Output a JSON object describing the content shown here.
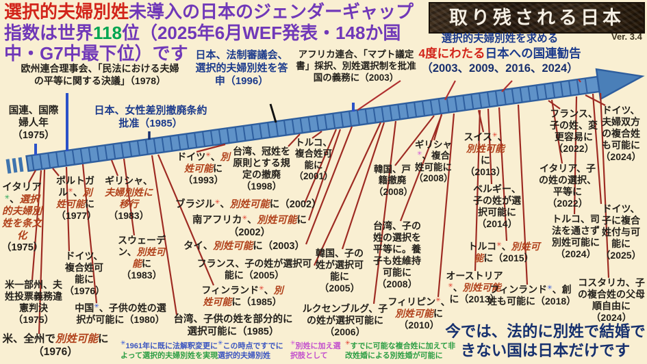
{
  "header": {
    "segments": [
      {
        "text": "選択的夫婦別姓",
        "color": "red"
      },
      {
        "text": "未導入の日本のジェンダーギャップ指数は世界",
        "color": "purple"
      },
      {
        "text": "118",
        "color": "green"
      },
      {
        "text": "位（2025年6月WEF発表・148か国中・G7中最下位）です",
        "color": "purple"
      }
    ]
  },
  "banner": {
    "title": "取り残される日本",
    "version": "Ver. 3.4"
  },
  "un_recommendation": {
    "line1": "選択的夫婦別姓を求める",
    "line2_red": "4度にわたる",
    "line2_navy": "日本への国連勧告",
    "line3": "（2003、2009、2016、2024）"
  },
  "milestones": [
    {
      "id": "eu-1978",
      "text": "欧州連合理事会、「民法における夫婦の平等に関する決議」（1978）"
    },
    {
      "id": "un-1975",
      "text": "国連、国際婦人年（1975）"
    },
    {
      "id": "cedaw-1985",
      "text": "日本、女性差別撤廃条約批准（1985）"
    },
    {
      "id": "shingikai-1996",
      "text": "日本、法制審議会、選択的夫婦別姓を答申（1996）"
    },
    {
      "id": "africa-2003",
      "text": "アフリカ連合、「マプト議定書」採択、別姓選択制を批准国の義務に（2003）"
    }
  ],
  "entries": [
    {
      "id": "italy-1975",
      "segments": [
        {
          "t": "イタリア",
          "s": "b"
        },
        {
          "t": "✳",
          "s": "ag"
        },
        {
          "t": "、",
          "s": "b"
        },
        {
          "t": "選択的夫婦別姓を条文化",
          "s": "r"
        },
        {
          "t": "（1975）",
          "s": "b"
        }
      ]
    },
    {
      "id": "portugal-1977",
      "segments": [
        {
          "t": "ポルトガル",
          "s": "b"
        },
        {
          "t": "✳",
          "s": "ar"
        },
        {
          "t": "、",
          "s": "b"
        },
        {
          "t": "別姓可能",
          "s": "r"
        },
        {
          "t": "に（1977）",
          "s": "b"
        }
      ]
    },
    {
      "id": "greece-1983",
      "segments": [
        {
          "t": "ギリシャ、",
          "s": "b"
        },
        {
          "t": "夫婦別姓に移行",
          "s": "r"
        },
        {
          "t": "（1983）",
          "s": "b"
        }
      ]
    },
    {
      "id": "sweden-1983",
      "segments": [
        {
          "t": "スウェーデン、",
          "s": "b"
        },
        {
          "t": "別姓可能",
          "s": "r"
        },
        {
          "t": "に（1983）",
          "s": "b"
        }
      ]
    },
    {
      "id": "us-states-1975",
      "segments": [
        {
          "t": "米一部州、夫姓投票義務違憲判決（1975）",
          "s": "b"
        }
      ]
    },
    {
      "id": "germany-1976",
      "segments": [
        {
          "t": "ドイツ、複合姓可能に（1976）",
          "s": "b"
        }
      ]
    },
    {
      "id": "china-1980",
      "segments": [
        {
          "t": "中国",
          "s": "b"
        },
        {
          "t": "✳",
          "s": "ab"
        },
        {
          "t": "、子供の姓の選択が可能に（1980）",
          "s": "b"
        }
      ]
    },
    {
      "id": "us-all-1976",
      "segments": [
        {
          "t": "米、全州で",
          "s": "b"
        },
        {
          "t": "別姓可能",
          "s": "r"
        },
        {
          "t": "に（1976）",
          "s": "b"
        }
      ]
    },
    {
      "id": "taiwan-1985",
      "segments": [
        {
          "t": "台湾、子供の姓を部分的に選択可能に（1985）",
          "s": "b"
        }
      ]
    },
    {
      "id": "germany-1993",
      "segments": [
        {
          "t": "ドイツ",
          "s": "b"
        },
        {
          "t": "✳",
          "s": "ar"
        },
        {
          "t": "、",
          "s": "b"
        },
        {
          "t": "別姓可能",
          "s": "r"
        },
        {
          "t": "に（1993）",
          "s": "b"
        }
      ]
    },
    {
      "id": "taiwan-1998",
      "segments": [
        {
          "t": "台湾、冠姓を原則とする規定の撤廃（1998）",
          "s": "b"
        }
      ]
    },
    {
      "id": "turkey-2001",
      "segments": [
        {
          "t": "トルコ、複合姓可能に（2001）",
          "s": "b"
        }
      ]
    },
    {
      "id": "brazil-2002",
      "segments": [
        {
          "t": "ブラジル",
          "s": "b"
        },
        {
          "t": "✳",
          "s": "ar"
        },
        {
          "t": "、",
          "s": "b"
        },
        {
          "t": "別姓可能",
          "s": "r"
        },
        {
          "t": "に（2002）",
          "s": "b"
        }
      ]
    },
    {
      "id": "southafrica-2002",
      "segments": [
        {
          "t": "南アフリカ",
          "s": "b"
        },
        {
          "t": "✳",
          "s": "ar"
        },
        {
          "t": "、",
          "s": "b"
        },
        {
          "t": "別姓可能",
          "s": "r"
        },
        {
          "t": "に（2002）",
          "s": "b"
        }
      ]
    },
    {
      "id": "thailand-2003",
      "segments": [
        {
          "t": "タイ、",
          "s": "b"
        },
        {
          "t": "別姓可能",
          "s": "r"
        },
        {
          "t": "に（2003）",
          "s": "b"
        }
      ]
    },
    {
      "id": "france-2005",
      "segments": [
        {
          "t": "フランス、子の姓が選択可能に（2005）",
          "s": "b"
        }
      ]
    },
    {
      "id": "finland-1985",
      "segments": [
        {
          "t": "フィンランド",
          "s": "b"
        },
        {
          "t": "✳",
          "s": "ar"
        },
        {
          "t": "、",
          "s": "b"
        },
        {
          "t": "別姓可能",
          "s": "r"
        },
        {
          "t": "に（1985）",
          "s": "b"
        }
      ]
    },
    {
      "id": "korea-2008",
      "segments": [
        {
          "t": "韓国、戸籍撤廃（2008）",
          "s": "b"
        }
      ]
    },
    {
      "id": "korea-2005",
      "segments": [
        {
          "t": "韓国、子の姓が選択可能に（2005）",
          "s": "b"
        }
      ]
    },
    {
      "id": "taiwan-2008",
      "segments": [
        {
          "t": "台湾、子の姓の選択を平等に。養子も姓維持可能に（2008）",
          "s": "b"
        }
      ]
    },
    {
      "id": "luxembourg-2006",
      "segments": [
        {
          "t": "ルクセンブルグ、子の姓が選択可能に（2006）",
          "s": "b"
        }
      ]
    },
    {
      "id": "philippines-2010",
      "segments": [
        {
          "t": "フィリピン",
          "s": "b"
        },
        {
          "t": "✳",
          "s": "ar"
        },
        {
          "t": "、",
          "s": "b"
        },
        {
          "t": "別姓可能",
          "s": "r"
        },
        {
          "t": "に（2010）",
          "s": "b"
        }
      ]
    },
    {
      "id": "greece-2008",
      "segments": [
        {
          "t": "ギリシャ",
          "s": "b"
        },
        {
          "t": "✳",
          "s": "am"
        },
        {
          "t": "、複合姓可能に（2008）",
          "s": "b"
        }
      ]
    },
    {
      "id": "switzerland-2013",
      "segments": [
        {
          "t": "スイス",
          "s": "b"
        },
        {
          "t": "✳",
          "s": "ar"
        },
        {
          "t": "、",
          "s": "b"
        },
        {
          "t": "別姓可能",
          "s": "r"
        },
        {
          "t": "に（2013）",
          "s": "b"
        }
      ]
    },
    {
      "id": "belgium-2014",
      "segments": [
        {
          "t": "ベルギー、子の姓が選択可能に（2014）",
          "s": "b"
        }
      ]
    },
    {
      "id": "turkey-2015",
      "segments": [
        {
          "t": "トルコ",
          "s": "b"
        },
        {
          "t": "✳",
          "s": "ar"
        },
        {
          "t": "、",
          "s": "b"
        },
        {
          "t": "別姓可能",
          "s": "r"
        },
        {
          "t": "に（2015）",
          "s": "b"
        }
      ]
    },
    {
      "id": "austria-2013",
      "segments": [
        {
          "t": "オーストリア",
          "s": "b"
        },
        {
          "t": "✳",
          "s": "ar"
        },
        {
          "t": "、",
          "s": "b"
        },
        {
          "t": "別姓可能",
          "s": "r"
        },
        {
          "t": "に（2013）",
          "s": "b"
        }
      ]
    },
    {
      "id": "finland-2018",
      "segments": [
        {
          "t": "フィンランド",
          "s": "b"
        },
        {
          "t": "✳",
          "s": "ab"
        },
        {
          "t": "、創姓も可能に（2018）",
          "s": "b"
        }
      ]
    },
    {
      "id": "france-2022",
      "segments": [
        {
          "t": "フランス、子の姓、変更容易に（2022）",
          "s": "b"
        }
      ]
    },
    {
      "id": "italy-2022",
      "segments": [
        {
          "t": "イタリア、子の姓の選択、平等に（2022）",
          "s": "b"
        }
      ]
    },
    {
      "id": "turkey-2024",
      "segments": [
        {
          "t": "トルコ、司法を通さず別姓可能に（2024）",
          "s": "b"
        }
      ]
    },
    {
      "id": "germany-2024",
      "segments": [
        {
          "t": "ドイツ、夫婦双方の複合姓も可能に（2024）",
          "s": "b"
        }
      ]
    },
    {
      "id": "germany-2025",
      "segments": [
        {
          "t": "ドイツ、子に複合姓付与可能に（2025）",
          "s": "b"
        }
      ]
    },
    {
      "id": "costarica-2024",
      "segments": [
        {
          "t": "コスタリカ、子の複合姓の父母順自由に（2024）",
          "s": "b"
        }
      ]
    },
    {
      "id": "fn1",
      "segments": [
        {
          "t": "✳",
          "s": "ab"
        },
        {
          "t": "1961年に既に法解釈変更に",
          "s": "fnb"
        },
        {
          "t": "よって選択的夫婦別姓を実現",
          "s": "fng"
        }
      ]
    },
    {
      "id": "fn2",
      "segments": [
        {
          "t": "✳",
          "s": "ab"
        },
        {
          "t": "この時点ですでに選択的夫婦別姓",
          "s": "fnb"
        }
      ]
    },
    {
      "id": "fn3",
      "segments": [
        {
          "t": "✳",
          "s": "am"
        },
        {
          "t": "別姓に加え選択肢として",
          "s": "fnm"
        }
      ]
    },
    {
      "id": "fn4",
      "segments": [
        {
          "t": "✳",
          "s": "ar"
        },
        {
          "t": "すでに可能な複合姓に加えて非改姓婚による別姓婚が可能に",
          "s": "fng"
        }
      ]
    }
  ],
  "conclusion": {
    "text": "今では、法的に別姓で結婚できない国は日本だけです"
  },
  "colors": {
    "background": "#f9efd2",
    "timeline_fill": "#5f92c8",
    "timeline_edge": "#2e5e9e",
    "connector_red": "#9e2b23",
    "navy": "#1b3a8c",
    "title_purple": "#7038b8",
    "title_red": "#d2241a",
    "rank_green": "#00a550",
    "keyword_red_italic": "#b0401a"
  }
}
